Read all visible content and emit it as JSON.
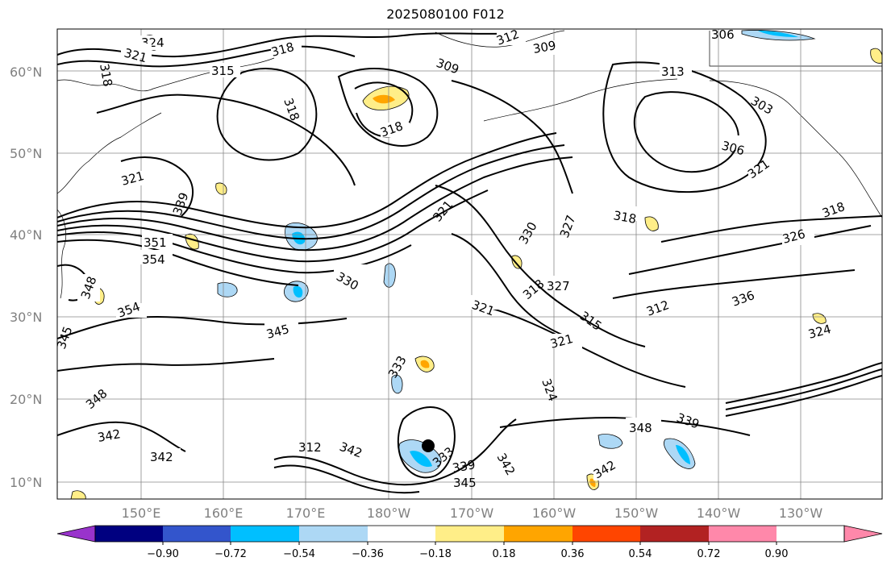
{
  "title": "2025080100 F012",
  "lat_labels": [
    "60°N",
    "50°N",
    "40°N",
    "30°N",
    "20°N",
    "10°N"
  ],
  "lon_labels": [
    "150°E",
    "160°E",
    "170°E",
    "180°W",
    "170°W",
    "160°W",
    "150°W",
    "140°W",
    "130°W"
  ],
  "contour_labels": [
    "324",
    "321",
    "318",
    "315",
    "318",
    "318",
    "318",
    "309",
    "312",
    "309",
    "313",
    "306",
    "306",
    "303",
    "321",
    "326",
    "321",
    "339",
    "351",
    "354",
    "348",
    "354",
    "345",
    "348",
    "342",
    "342",
    "345",
    "330",
    "321",
    "330",
    "327",
    "318",
    "327",
    "321",
    "315",
    "321",
    "312",
    "336",
    "324",
    "318",
    "333",
    "324",
    "348",
    "339",
    "342",
    "345",
    "339",
    "333",
    "342",
    "342",
    "312",
    "318"
  ],
  "colorbar": {
    "ticks": [
      "−0.90",
      "−0.72",
      "−0.54",
      "−0.36",
      "−0.18",
      "0.18",
      "0.36",
      "0.54",
      "0.72",
      "0.90"
    ],
    "colors": [
      "#9933cc",
      "#000080",
      "#3355cc",
      "#00bfff",
      "#add8f5",
      "#ffffff",
      "#ffee88",
      "#ffa500",
      "#ff4500",
      "#b22222",
      "#ff88aa"
    ]
  }
}
